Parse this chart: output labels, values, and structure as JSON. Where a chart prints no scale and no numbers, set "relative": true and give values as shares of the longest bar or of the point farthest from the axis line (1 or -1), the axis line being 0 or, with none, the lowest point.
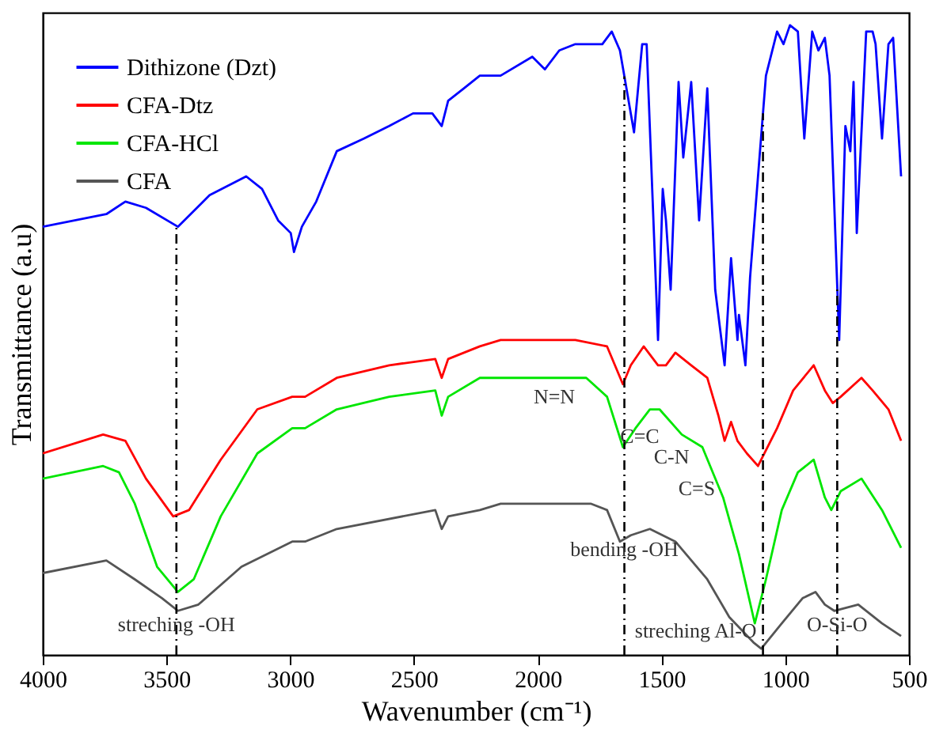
{
  "chart_data": {
    "type": "line",
    "relative": true,
    "xlabel": "Wavenumber (cm⁻¹)",
    "ylabel": "Transmittance (a.u)",
    "xlim": [
      4000,
      500
    ],
    "xticks": [
      4000,
      3500,
      3000,
      2500,
      2000,
      1500,
      1000,
      500
    ],
    "legend": "top left",
    "grid": false,
    "tick_labels": "x",
    "line_style": "solid",
    "marker": "none",
    "series": [
      {
        "name": "Dithizone (Dzt)",
        "color": "#0000ff",
        "x": [
          4000,
          3743,
          3666,
          3583,
          3454,
          3326,
          3178,
          3114,
          3049,
          2998,
          2985,
          2953,
          2895,
          2812,
          2703,
          2600,
          2504,
          2426,
          2388,
          2362,
          2298,
          2234,
          2150,
          2022,
          1971,
          1913,
          1848,
          1739,
          1701,
          1668,
          1611,
          1578,
          1560,
          1514,
          1495,
          1482,
          1463,
          1431,
          1412,
          1380,
          1348,
          1315,
          1283,
          1245,
          1219,
          1193,
          1187,
          1161,
          1142,
          1110,
          1078,
          1033,
          1007,
          981,
          949,
          923,
          891,
          866,
          840,
          821,
          782,
          757,
          737,
          724,
          711,
          673,
          647,
          635,
          609,
          583,
          564,
          532
        ],
        "values": [
          0.68,
          0.7,
          0.72,
          0.71,
          0.68,
          0.73,
          0.76,
          0.74,
          0.69,
          0.67,
          0.64,
          0.68,
          0.72,
          0.8,
          0.82,
          0.84,
          0.86,
          0.86,
          0.84,
          0.88,
          0.9,
          0.92,
          0.92,
          0.95,
          0.93,
          0.96,
          0.97,
          0.97,
          0.99,
          0.96,
          0.83,
          0.97,
          0.97,
          0.5,
          0.74,
          0.69,
          0.58,
          0.91,
          0.79,
          0.91,
          0.69,
          0.9,
          0.58,
          0.46,
          0.63,
          0.5,
          0.54,
          0.46,
          0.6,
          0.76,
          0.92,
          0.99,
          0.97,
          1.0,
          0.99,
          0.82,
          0.99,
          0.96,
          0.98,
          0.92,
          0.5,
          0.84,
          0.8,
          0.91,
          0.67,
          0.99,
          0.99,
          0.97,
          0.82,
          0.97,
          0.98,
          0.76
        ]
      },
      {
        "name": "CFA-Dtz",
        "color": "#ff0000",
        "x": [
          4000,
          3756,
          3666,
          3583,
          3473,
          3409,
          3281,
          3133,
          2992,
          2940,
          2812,
          2600,
          2414,
          2388,
          2362,
          2234,
          2150,
          1848,
          1720,
          1656,
          1624,
          1572,
          1514,
          1482,
          1444,
          1380,
          1315,
          1270,
          1245,
          1219,
          1193,
          1155,
          1110,
          1033,
          968,
          885,
          840,
          808,
          776,
          692,
          647,
          583,
          532
        ],
        "values": [
          0.32,
          0.35,
          0.34,
          0.28,
          0.22,
          0.23,
          0.31,
          0.39,
          0.41,
          0.41,
          0.44,
          0.46,
          0.47,
          0.44,
          0.47,
          0.49,
          0.5,
          0.5,
          0.49,
          0.43,
          0.46,
          0.49,
          0.46,
          0.46,
          0.48,
          0.46,
          0.44,
          0.38,
          0.34,
          0.37,
          0.34,
          0.32,
          0.3,
          0.36,
          0.42,
          0.46,
          0.42,
          0.4,
          0.41,
          0.44,
          0.42,
          0.39,
          0.34
        ]
      },
      {
        "name": "CFA-HCl",
        "color": "#00e600",
        "x": [
          4000,
          3756,
          3692,
          3628,
          3538,
          3454,
          3390,
          3281,
          3133,
          2992,
          2940,
          2812,
          2600,
          2414,
          2388,
          2362,
          2234,
          2150,
          1804,
          1720,
          1656,
          1605,
          1547,
          1508,
          1418,
          1335,
          1251,
          1187,
          1123,
          1078,
          1014,
          949,
          885,
          840,
          814,
          776,
          692,
          609,
          532
        ],
        "values": [
          0.28,
          0.3,
          0.29,
          0.24,
          0.14,
          0.1,
          0.12,
          0.22,
          0.32,
          0.36,
          0.36,
          0.39,
          0.41,
          0.42,
          0.38,
          0.41,
          0.44,
          0.44,
          0.44,
          0.41,
          0.33,
          0.36,
          0.39,
          0.39,
          0.35,
          0.33,
          0.25,
          0.16,
          0.05,
          0.12,
          0.23,
          0.29,
          0.31,
          0.25,
          0.23,
          0.26,
          0.28,
          0.23,
          0.17
        ]
      },
      {
        "name": "CFA",
        "color": "#555555",
        "x": [
          4000,
          3743,
          3628,
          3518,
          3454,
          3371,
          3197,
          2992,
          2940,
          2812,
          2414,
          2388,
          2362,
          2234,
          2150,
          1784,
          1720,
          1668,
          1624,
          1547,
          1444,
          1315,
          1226,
          1129,
          1097,
          1014,
          930,
          878,
          840,
          802,
          705,
          609,
          532
        ],
        "values": [
          0.13,
          0.15,
          0.12,
          0.09,
          0.07,
          0.08,
          0.14,
          0.18,
          0.18,
          0.2,
          0.23,
          0.2,
          0.22,
          0.23,
          0.24,
          0.24,
          0.23,
          0.18,
          0.19,
          0.2,
          0.18,
          0.12,
          0.06,
          0.02,
          0.01,
          0.05,
          0.09,
          0.1,
          0.08,
          0.07,
          0.08,
          0.05,
          0.03
        ]
      }
    ],
    "ref_lines": [
      {
        "axis": "x",
        "value": 3460,
        "color": "#000000",
        "line_style": "dashed"
      },
      {
        "axis": "x",
        "value": 1650,
        "color": "#000000",
        "line_style": "dashed"
      },
      {
        "axis": "x",
        "value": 1090,
        "color": "#000000",
        "line_style": "dashed"
      },
      {
        "axis": "x",
        "value": 790,
        "color": "#000000",
        "line_style": "dashed"
      }
    ],
    "annotations": [
      {
        "text": "streching -OH",
        "x": 3460,
        "y": 0.03
      },
      {
        "text": "bending -OH",
        "x": 1650,
        "y": 0.15
      },
      {
        "text": "streching Al-O",
        "x": 1090,
        "y": 0.02
      },
      {
        "text": "O-Si-O",
        "x": 790,
        "y": 0.03
      },
      "N=N",
      "C=C",
      "C-N",
      "C=S"
    ]
  }
}
